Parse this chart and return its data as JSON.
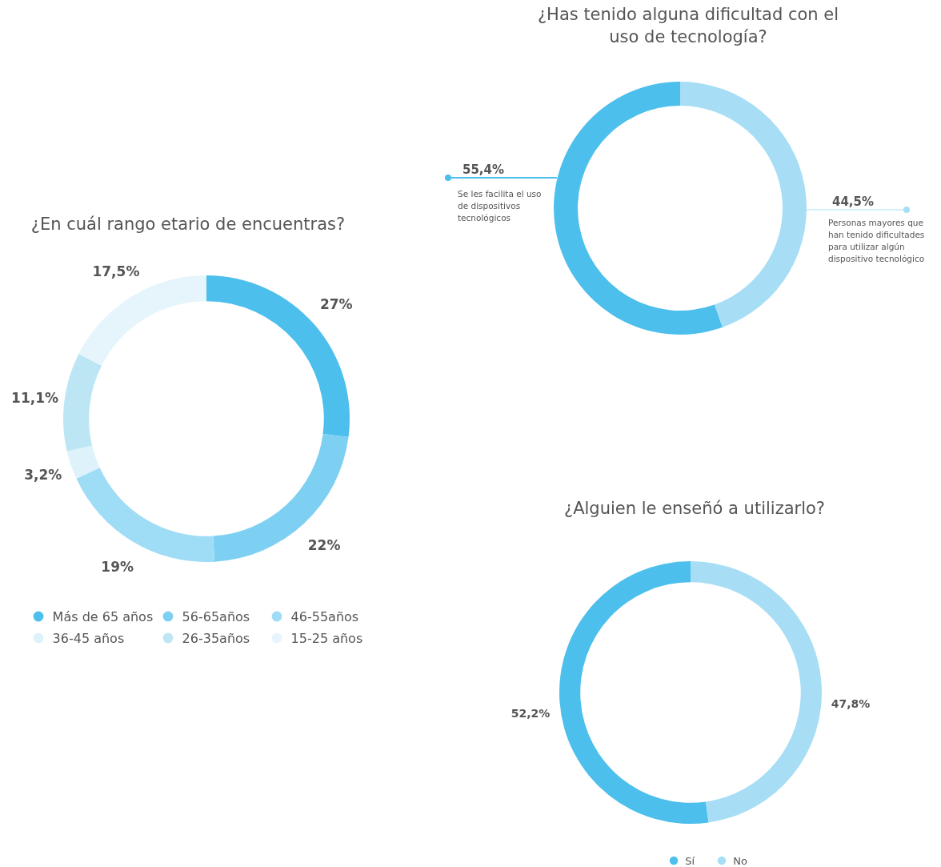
{
  "chart_data": [
    {
      "type": "donut",
      "title": "¿En cuál rango etario de encuentras?",
      "categories": [
        "Más de 65 años",
        "56-65años",
        "46-55años",
        "36-45 años",
        "26-35años",
        "15-25 años"
      ],
      "values": [
        27,
        22,
        19,
        3.2,
        11.1,
        17.5
      ],
      "value_labels": [
        "27%",
        "22%",
        "19%",
        "3,2%",
        "11,1%",
        "17,5%"
      ],
      "colors": [
        "#4dbfec",
        "#7dd0f2",
        "#9fdcf5",
        "#def2fb",
        "#bde6f5",
        "#e6f5fb"
      ],
      "legend": "bottom"
    },
    {
      "type": "donut",
      "title": "¿Has tenido alguna dificultad con el uso de tecnología?",
      "categories": [
        "Se les facilita el uso de dispositivos tecnológicos",
        "Personas mayores que han tenido dificultades para utilizar algún dispositivo tecnológico"
      ],
      "values": [
        55.4,
        44.5
      ],
      "value_labels": [
        "55,4%",
        "44,5%"
      ],
      "colors": [
        "#4dbfec",
        "#a7def5"
      ]
    },
    {
      "type": "donut",
      "title": "¿Alguien le enseñó a utilizarlo?",
      "categories": [
        "Sí",
        "No"
      ],
      "values": [
        52.2,
        47.8
      ],
      "value_labels": [
        "52,2%",
        "47,8%"
      ],
      "colors": [
        "#4dbfec",
        "#a7def5"
      ],
      "legend": "bottom"
    }
  ]
}
